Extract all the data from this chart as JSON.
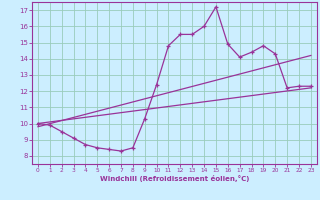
{
  "xlabel": "Windchill (Refroidissement éolien,°C)",
  "bg_color": "#cceeff",
  "grid_color": "#99ccbb",
  "line_color": "#993399",
  "xlim": [
    -0.5,
    23.5
  ],
  "ylim": [
    7.5,
    17.5
  ],
  "xticks": [
    0,
    1,
    2,
    3,
    4,
    5,
    6,
    7,
    8,
    9,
    10,
    11,
    12,
    13,
    14,
    15,
    16,
    17,
    18,
    19,
    20,
    21,
    22,
    23
  ],
  "yticks": [
    8,
    9,
    10,
    11,
    12,
    13,
    14,
    15,
    16,
    17
  ],
  "curve_x": [
    0,
    1,
    2,
    3,
    4,
    5,
    6,
    7,
    8,
    9,
    10,
    11,
    12,
    13,
    14,
    15,
    16,
    17,
    18,
    19,
    20,
    21,
    22,
    23
  ],
  "curve_y": [
    10.0,
    9.9,
    9.5,
    9.1,
    8.7,
    8.5,
    8.4,
    8.3,
    8.5,
    10.3,
    12.4,
    14.8,
    15.5,
    15.5,
    16.0,
    17.2,
    14.9,
    14.1,
    14.4,
    14.8,
    14.3,
    12.2,
    12.3,
    12.3
  ],
  "trend1_x": [
    0,
    23
  ],
  "trend1_y": [
    9.8,
    14.2
  ],
  "trend2_x": [
    0,
    23
  ],
  "trend2_y": [
    10.0,
    12.2
  ]
}
